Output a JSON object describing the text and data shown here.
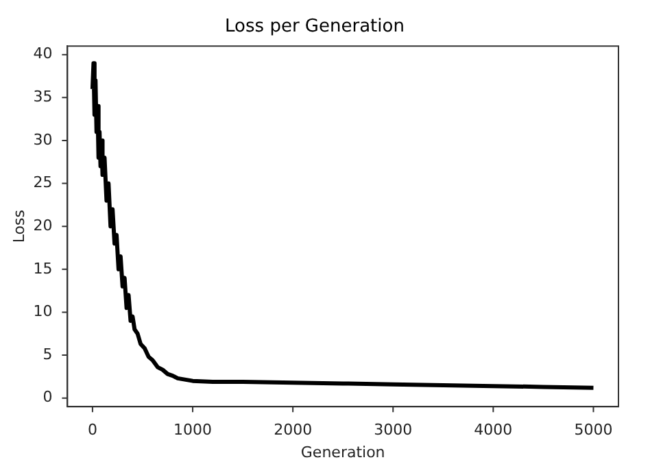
{
  "chart_data": {
    "type": "line",
    "title": "Loss per Generation",
    "xlabel": "Generation",
    "ylabel": "Loss",
    "x": [
      0,
      10,
      20,
      30,
      40,
      50,
      60,
      70,
      80,
      90,
      100,
      120,
      140,
      160,
      180,
      200,
      220,
      240,
      260,
      280,
      300,
      320,
      340,
      360,
      380,
      400,
      420,
      450,
      480,
      520,
      560,
      600,
      650,
      700,
      750,
      800,
      850,
      900,
      1000,
      1200,
      1500,
      2000,
      2500,
      3000,
      3500,
      4000,
      4500,
      5000
    ],
    "series": [
      {
        "color": "#000000",
        "values": [
          36,
          39,
          33,
          37,
          31,
          34,
          28,
          31,
          27,
          30,
          26,
          28,
          23,
          25,
          20,
          22,
          18,
          19,
          15,
          16.5,
          13,
          14,
          10.5,
          12,
          9,
          9.5,
          8,
          7.5,
          6.3,
          5.8,
          4.8,
          4.4,
          3.6,
          3.3,
          2.8,
          2.6,
          2.3,
          2.2,
          2,
          1.9,
          1.9,
          1.8,
          1.7,
          1.6,
          1.5,
          1.4,
          1.3,
          1.2
        ]
      }
    ],
    "xlim": [
      -250,
      5250
    ],
    "xticks": [
      0,
      1000,
      2000,
      3000,
      4000,
      5000
    ],
    "ylim": [
      -1,
      41
    ],
    "yticks": [
      0,
      5,
      10,
      15,
      20,
      25,
      30,
      35,
      40
    ],
    "grid": false,
    "legend": false,
    "marker": "none",
    "line_style": "solid"
  }
}
